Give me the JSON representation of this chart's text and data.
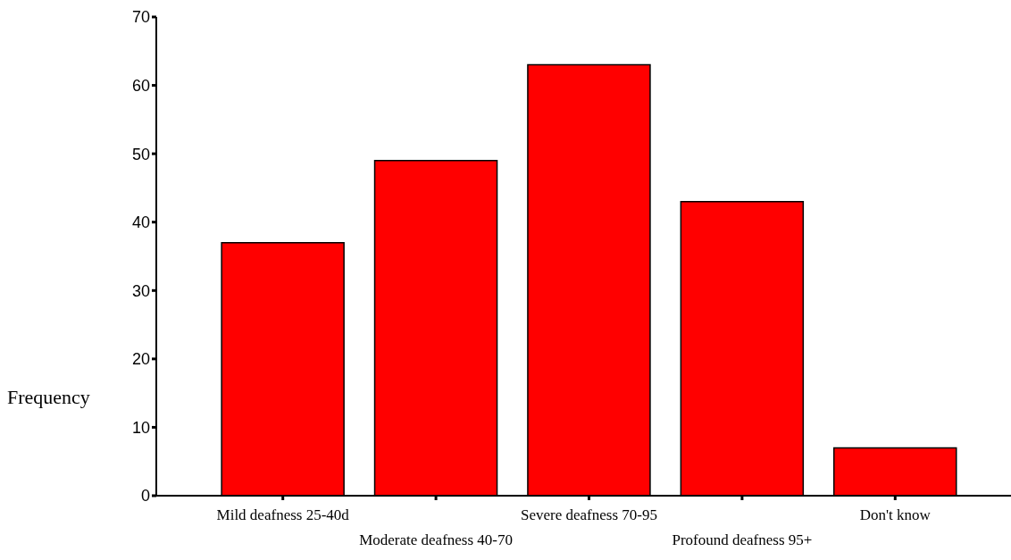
{
  "chart_data": {
    "type": "bar",
    "ylabel": "Frequency",
    "categories": [
      "Mild deafness 25-40d",
      "Moderate deafness 40-70",
      "Severe deafness 70-95",
      "Profound deafness 95+",
      "Don't know"
    ],
    "values": [
      37,
      49,
      63,
      43,
      7
    ],
    "color": "#ff0000",
    "ylim": [
      0,
      70
    ],
    "yticks": [
      0,
      10,
      20,
      30,
      40,
      50,
      60,
      70
    ],
    "grid": false
  }
}
